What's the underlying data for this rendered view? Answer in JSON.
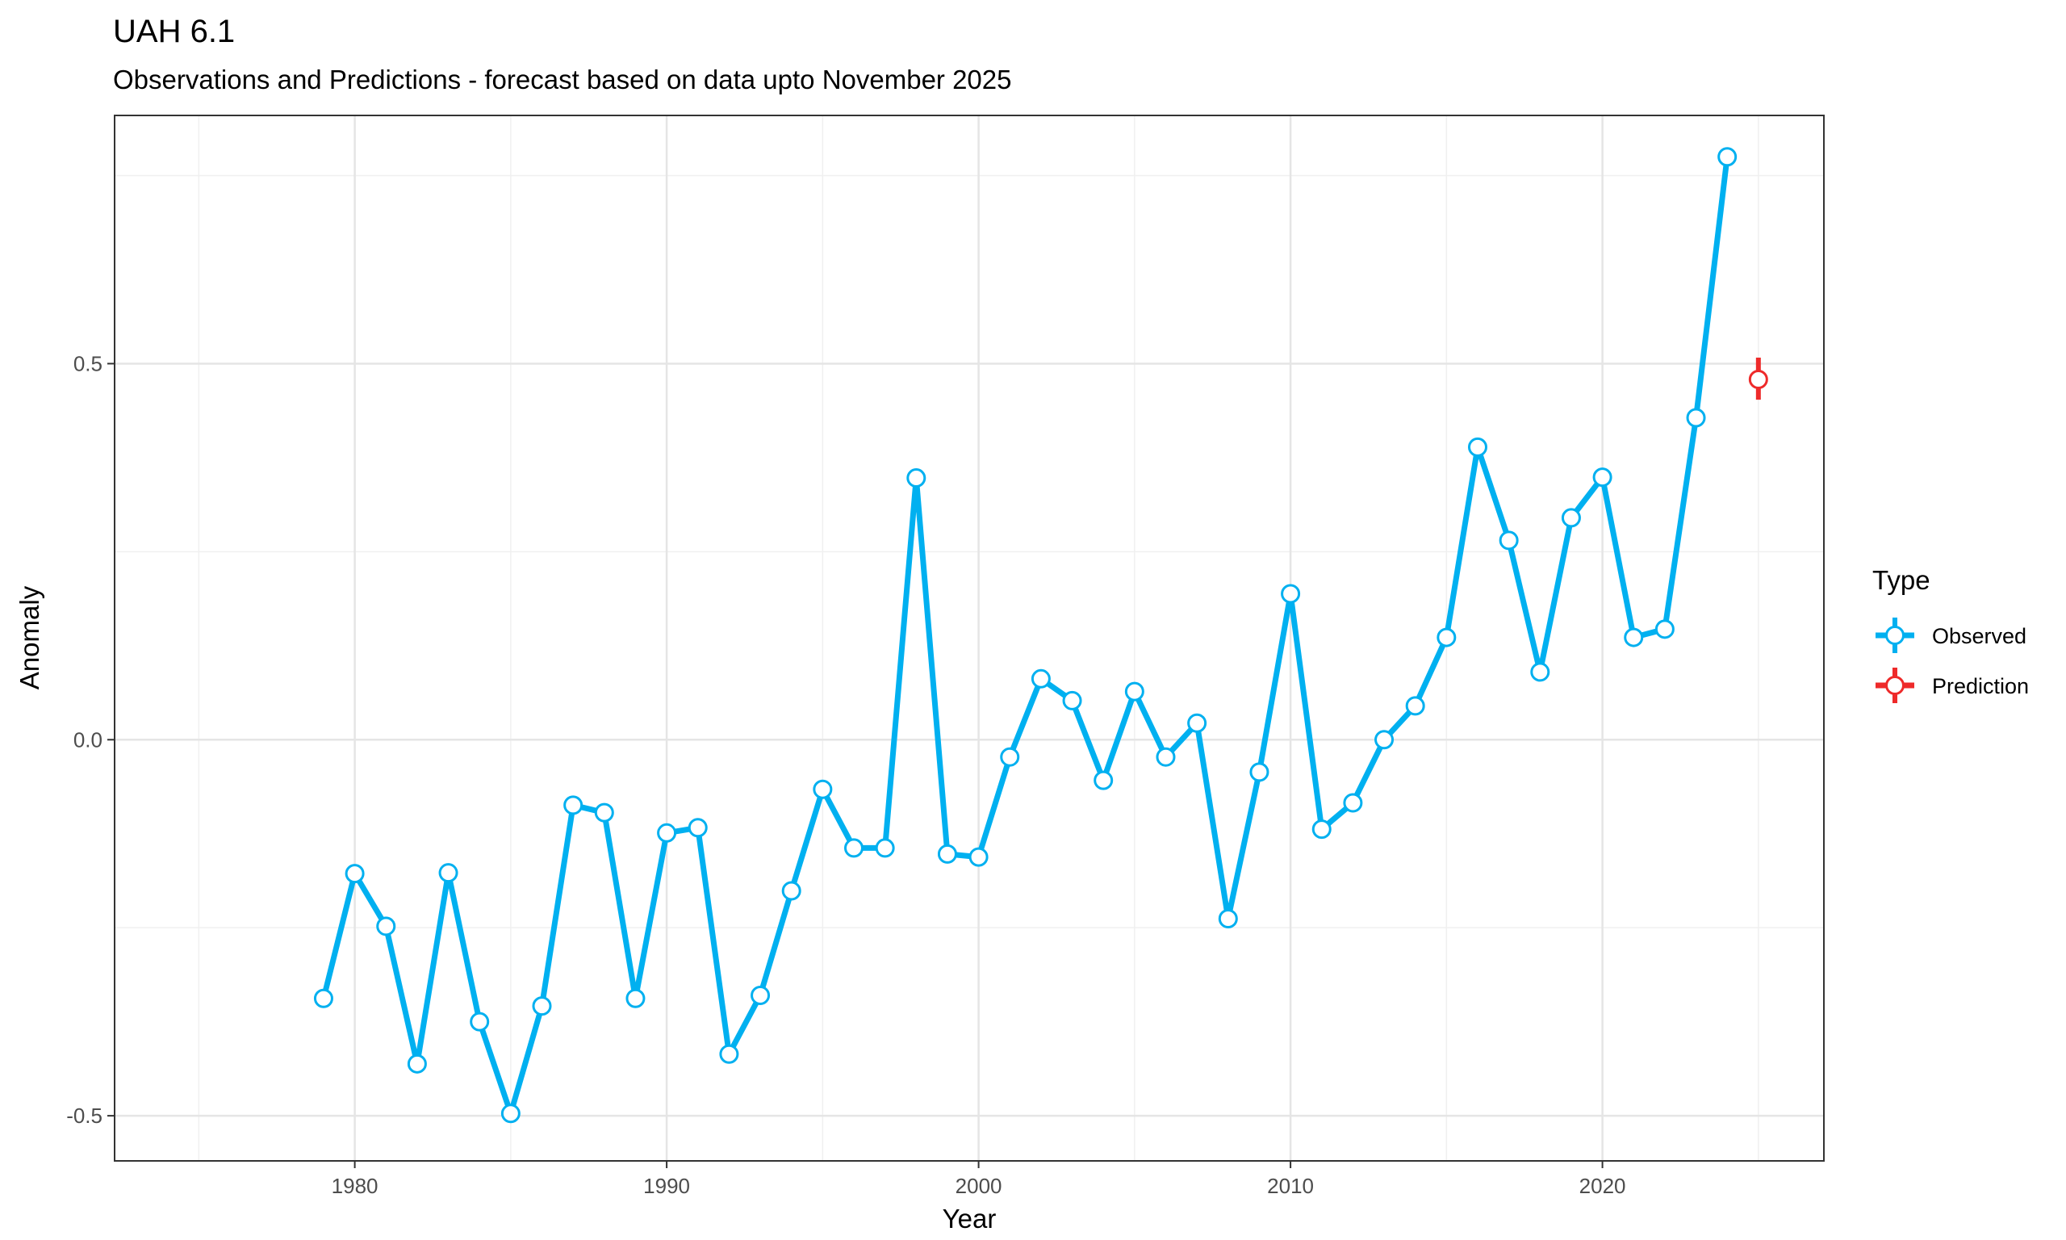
{
  "chart_data": {
    "type": "line",
    "title": "UAH 6.1",
    "subtitle": "Observations and Predictions - forecast based on data upto  November 2025",
    "xlabel": "Year",
    "ylabel": "Anomaly",
    "xlim": [
      1972.3,
      2027.1
    ],
    "ylim": [
      -0.56,
      0.83
    ],
    "x_ticks": [
      1980,
      1990,
      2000,
      2010,
      2020
    ],
    "x_tick_labels": [
      "1980",
      "1990",
      "2000",
      "2010",
      "2020"
    ],
    "y_ticks": [
      -0.5,
      0.0,
      0.5
    ],
    "y_tick_labels": [
      "-0.5",
      "0.0",
      "0.5"
    ],
    "grid": true,
    "legend": {
      "title": "Type",
      "position": "right"
    },
    "series": [
      {
        "name": "Observed",
        "color": "#00b0f0",
        "x": [
          1979,
          1980,
          1981,
          1982,
          1983,
          1984,
          1985,
          1986,
          1987,
          1988,
          1989,
          1990,
          1991,
          1992,
          1993,
          1994,
          1995,
          1996,
          1997,
          1998,
          1999,
          2000,
          2001,
          2002,
          2003,
          2004,
          2005,
          2006,
          2007,
          2008,
          2009,
          2010,
          2011,
          2012,
          2013,
          2014,
          2015,
          2016,
          2017,
          2018,
          2019,
          2020,
          2021,
          2022,
          2023,
          2024
        ],
        "y": [
          -0.344,
          -0.178,
          -0.248,
          -0.431,
          -0.177,
          -0.375,
          -0.497,
          -0.354,
          -0.087,
          -0.097,
          -0.344,
          -0.124,
          -0.117,
          -0.418,
          -0.34,
          -0.201,
          -0.066,
          -0.144,
          -0.144,
          0.348,
          -0.152,
          -0.156,
          -0.023,
          0.081,
          0.052,
          -0.054,
          0.064,
          -0.023,
          0.022,
          -0.238,
          -0.043,
          0.194,
          -0.119,
          -0.084,
          0.0,
          0.045,
          0.136,
          0.389,
          0.265,
          0.09,
          0.295,
          0.349,
          0.136,
          0.147,
          0.428,
          0.775
        ]
      },
      {
        "name": "Prediction",
        "color": "#ee2a2a",
        "x": [
          2025
        ],
        "y": [
          0.479
        ],
        "ymin": [
          0.452
        ],
        "ymax": [
          0.508
        ]
      }
    ]
  }
}
